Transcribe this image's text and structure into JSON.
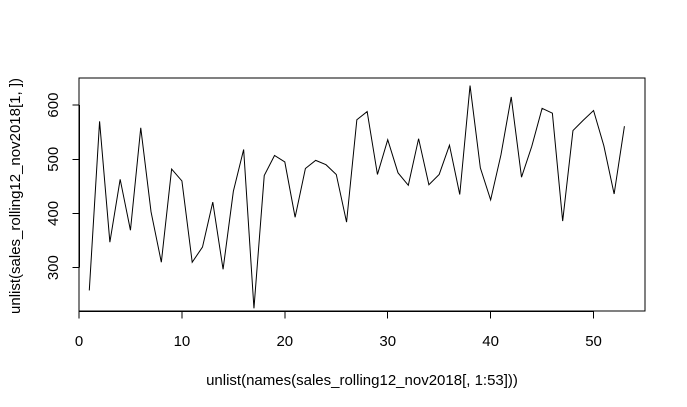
{
  "chart_data": {
    "type": "line",
    "title": "",
    "xlabel": "unlist(names(sales_rolling12_nov2018[, 1:53]))",
    "ylabel": "unlist(sales_rolling12_nov2018[1, ])",
    "xlim": [
      0,
      55
    ],
    "ylim": [
      220,
      650
    ],
    "x_ticks": [
      0,
      10,
      20,
      30,
      40,
      50
    ],
    "y_ticks": [
      300,
      400,
      500,
      600
    ],
    "x_tick_labels": [
      "0",
      "10",
      "20",
      "30",
      "40",
      "50"
    ],
    "y_tick_labels": [
      "300",
      "400",
      "500",
      "600"
    ],
    "grid": false,
    "legend": "none",
    "line_color": "#000000",
    "series": [
      {
        "x": [
          1,
          2,
          3,
          4,
          5,
          6,
          7,
          8,
          9,
          10,
          11,
          12,
          13,
          14,
          15,
          16,
          17,
          18,
          19,
          20,
          21,
          22,
          23,
          24,
          25,
          26,
          27,
          28,
          29,
          30,
          31,
          32,
          33,
          34,
          35,
          36,
          37,
          38,
          39,
          40,
          41,
          42,
          43,
          44,
          45,
          46,
          47,
          48,
          49,
          50,
          51,
          52,
          53
        ],
        "values": [
          258,
          570,
          347,
          463,
          369,
          558,
          403,
          310,
          482,
          460,
          310,
          338,
          421,
          297,
          441,
          518,
          225,
          470,
          507,
          495,
          393,
          483,
          498,
          490,
          472,
          384,
          573,
          588,
          472,
          536,
          475,
          452,
          538,
          453,
          472,
          526,
          435,
          636,
          484,
          425,
          508,
          615,
          467,
          524,
          594,
          585,
          386,
          553,
          572,
          590,
          525,
          436,
          561
        ]
      }
    ]
  }
}
